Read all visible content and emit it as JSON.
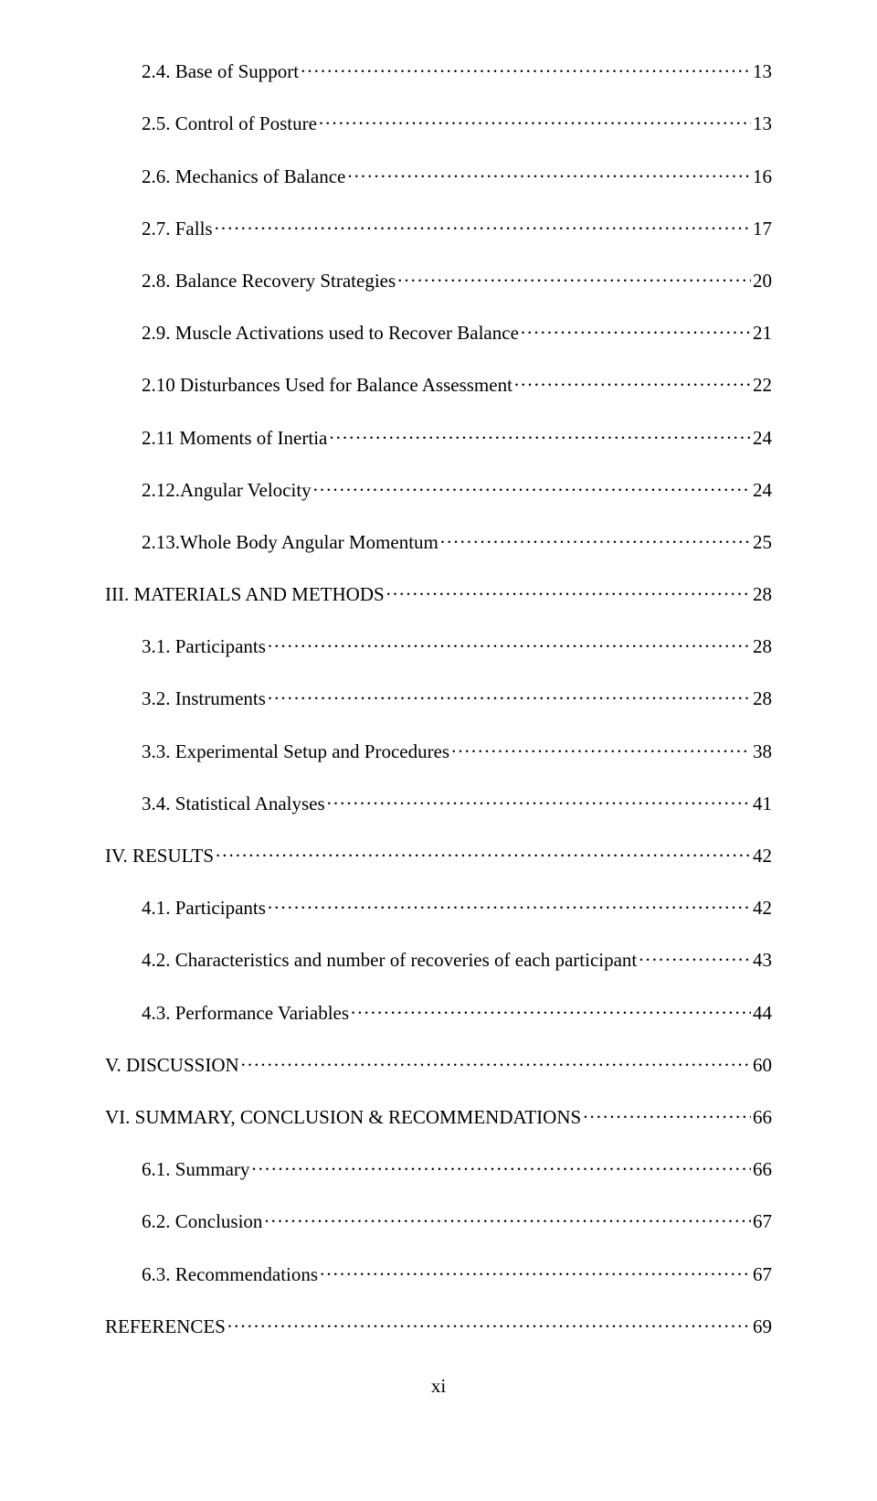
{
  "entries": [
    {
      "label": "2.4. Base of Support",
      "page": "13",
      "level": 1
    },
    {
      "label": "2.5. Control of Posture",
      "page": "13",
      "level": 1
    },
    {
      "label": "2.6. Mechanics of Balance",
      "page": "16",
      "level": 1
    },
    {
      "label": "2.7. Falls",
      "page": "17",
      "level": 1
    },
    {
      "label": "2.8. Balance Recovery Strategies",
      "page": "20",
      "level": 1
    },
    {
      "label": "2.9. Muscle Activations used to Recover Balance",
      "page": "21",
      "level": 1
    },
    {
      "label": "2.10 Disturbances Used for Balance Assessment",
      "page": "22",
      "level": 1
    },
    {
      "label": "2.11 Moments of Inertia",
      "page": "24",
      "level": 1
    },
    {
      "label": "2.12.Angular Velocity",
      "page": "24",
      "level": 1
    },
    {
      "label": "2.13.Whole Body Angular Momentum",
      "page": "25",
      "level": 1
    },
    {
      "label": "III. MATERIALS AND METHODS",
      "page": "28",
      "level": 0
    },
    {
      "label": "3.1. Participants",
      "page": "28",
      "level": 1
    },
    {
      "label": "3.2. Instruments",
      "page": "28",
      "level": 1
    },
    {
      "label": "3.3. Experimental Setup and Procedures",
      "page": "38",
      "level": 1
    },
    {
      "label": "3.4. Statistical Analyses",
      "page": "41",
      "level": 1
    },
    {
      "label": "IV. RESULTS",
      "page": "42",
      "level": 0
    },
    {
      "label": "4.1. Participants",
      "page": "42",
      "level": 1
    },
    {
      "label": "4.2. Characteristics and number of recoveries of each participant",
      "page": "43",
      "level": 1
    },
    {
      "label": "4.3. Performance Variables",
      "page": "44",
      "level": 1
    },
    {
      "label": "V. DISCUSSION",
      "page": "60",
      "level": 0
    },
    {
      "label": "VI. SUMMARY, CONCLUSION & RECOMMENDATIONS",
      "page": "66",
      "level": 0
    },
    {
      "label": "6.1. Summary",
      "page": "66",
      "level": 1
    },
    {
      "label": "6.2. Conclusion",
      "page": "67",
      "level": 1
    },
    {
      "label": "6.3. Recommendations",
      "page": "67",
      "level": 1
    },
    {
      "label": "REFERENCES",
      "page": "69",
      "level": 0
    }
  ],
  "page_number": "xi",
  "colors": {
    "text": "#000000",
    "background": "#ffffff"
  },
  "typography": {
    "font_family": "Times New Roman",
    "font_size_pt": 16
  }
}
